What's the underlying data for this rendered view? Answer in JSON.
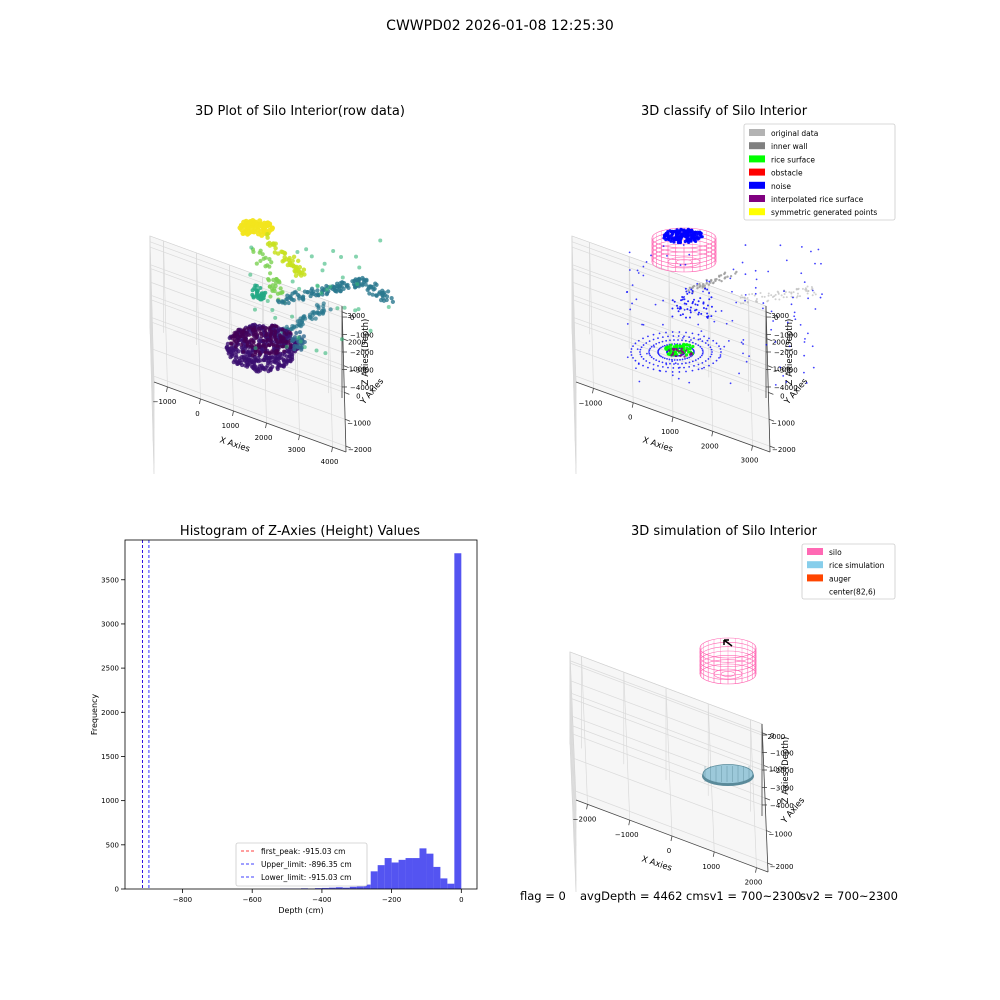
{
  "suptitle": "CWWPD02 2026-01-08 12:25:30",
  "footer": {
    "flag": "flag = 0",
    "avg": "avgDepth = 4462 cmsv1 = 700~2300",
    "sv2": "sv2 = 700~2300"
  },
  "colors": {
    "original": "#b3b3b3",
    "inner_wall": "#808080",
    "rice": "#00ff00",
    "obstacle": "#ff0000",
    "noise": "#0000ff",
    "interp": "#800080",
    "symm": "#ffff00",
    "silo": "#ff69b4",
    "rice_sim": "#87ceeb",
    "auger": "#ff4500",
    "hist": "#4b4bf0"
  },
  "chart_data": [
    {
      "type": "scatter",
      "title": "3D Plot of Silo Interior(row data)",
      "xlabel": "X Axies",
      "ylabel": "Y Axies",
      "zlabel": "Z Axies (Depth)",
      "xticks": [
        "−1000",
        "0",
        "1000",
        "2000",
        "3000",
        "4000"
      ],
      "yticks": [
        "−2000",
        "−1000",
        "0",
        "1000",
        "2000",
        "3000"
      ],
      "zticks": [
        "0",
        "−1000",
        "−2000",
        "−3000",
        "−4000"
      ],
      "colormap": "viridis"
    },
    {
      "type": "scatter",
      "title": "3D classify of Silo Interior",
      "xlabel": "X Axies",
      "ylabel": "Y Axies",
      "zlabel": "Z Axies (Depth)",
      "xticks": [
        "−1000",
        "0",
        "1000",
        "2000",
        "3000"
      ],
      "yticks": [
        "−2000",
        "−1000",
        "0",
        "1000",
        "2000",
        "3000"
      ],
      "zticks": [
        "0",
        "−1000",
        "−2000",
        "−3000",
        "−4000"
      ],
      "legend": [
        {
          "label": "original data",
          "color": "#b3b3b3"
        },
        {
          "label": "inner wall",
          "color": "#808080"
        },
        {
          "label": "rice surface",
          "color": "#00ff00"
        },
        {
          "label": "obstacle",
          "color": "#ff0000"
        },
        {
          "label": "noise",
          "color": "#0000ff"
        },
        {
          "label": "interpolated rice surface",
          "color": "#800080"
        },
        {
          "label": "symmetric generated points",
          "color": "#ffff00"
        }
      ],
      "legend_position": "top-right"
    },
    {
      "type": "bar",
      "title": "Histogram of Z-Axies (Height) Values",
      "xlabel": "Depth (cm)",
      "ylabel": "Frequency",
      "xlim": [
        -965,
        45
      ],
      "ylim": [
        0,
        3950
      ],
      "xticks": [
        -800,
        -600,
        -400,
        -200,
        0
      ],
      "yticks": [
        0,
        500,
        1000,
        1500,
        2000,
        2500,
        3000,
        3500
      ],
      "bin_width": 20,
      "bins": [
        {
          "x": -500,
          "y": 5
        },
        {
          "x": -480,
          "y": 5
        },
        {
          "x": -460,
          "y": 5
        },
        {
          "x": -440,
          "y": 8
        },
        {
          "x": -420,
          "y": 5
        },
        {
          "x": -400,
          "y": 10
        },
        {
          "x": -380,
          "y": 12
        },
        {
          "x": -360,
          "y": 15
        },
        {
          "x": -340,
          "y": 20
        },
        {
          "x": -320,
          "y": 15
        },
        {
          "x": -300,
          "y": 25
        },
        {
          "x": -280,
          "y": 30
        },
        {
          "x": -260,
          "y": 50
        },
        {
          "x": -240,
          "y": 200
        },
        {
          "x": -220,
          "y": 270
        },
        {
          "x": -200,
          "y": 350
        },
        {
          "x": -180,
          "y": 300
        },
        {
          "x": -160,
          "y": 330
        },
        {
          "x": -140,
          "y": 350
        },
        {
          "x": -120,
          "y": 350
        },
        {
          "x": -100,
          "y": 460
        },
        {
          "x": -80,
          "y": 400
        },
        {
          "x": -60,
          "y": 250
        },
        {
          "x": -40,
          "y": 120
        },
        {
          "x": -20,
          "y": 60
        },
        {
          "x": 0,
          "y": 3800
        }
      ],
      "lines": [
        {
          "label": "first_peak: -915.03 cm",
          "x": -915.03,
          "color": "#ff0000"
        },
        {
          "label": "Upper_limit: -896.35 cm",
          "x": -896.35,
          "color": "#0000ff"
        },
        {
          "label": "Lower_limit: -915.03 cm",
          "x": -915.03,
          "color": "#0000ff"
        }
      ],
      "legend_position": "lower-center"
    },
    {
      "type": "scatter",
      "title": "3D simulation of Silo Interior",
      "xlabel": "X Axies",
      "ylabel": "Y Axies",
      "zlabel": "Z Axies (Depth)",
      "xticks": [
        "−2000",
        "−1000",
        "0",
        "1000",
        "2000"
      ],
      "yticks": [
        "−2000",
        "−1000",
        "0",
        "1000",
        "2000"
      ],
      "zticks": [
        "0",
        "−1000",
        "−2000",
        "−3000",
        "−4000"
      ],
      "legend": [
        {
          "label": "silo",
          "color": "#ff69b4"
        },
        {
          "label": "rice simulation",
          "color": "#87ceeb"
        },
        {
          "label": "auger",
          "color": "#ff4500"
        },
        {
          "label": "center(82,6)",
          "color": "#ffffff"
        }
      ],
      "legend_position": "top-right"
    }
  ]
}
